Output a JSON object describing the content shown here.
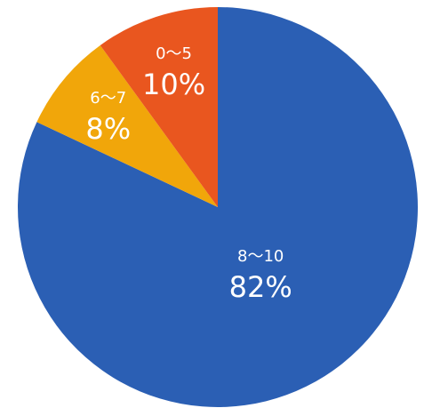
{
  "chart_data": {
    "type": "pie",
    "categories": [
      "8〜10",
      "6〜7",
      "0〜5"
    ],
    "values": [
      82,
      8,
      10
    ],
    "value_labels": [
      "82%",
      "8%",
      "10%"
    ],
    "colors": [
      "#2b5fb4",
      "#f1a60a",
      "#e9561f"
    ]
  }
}
